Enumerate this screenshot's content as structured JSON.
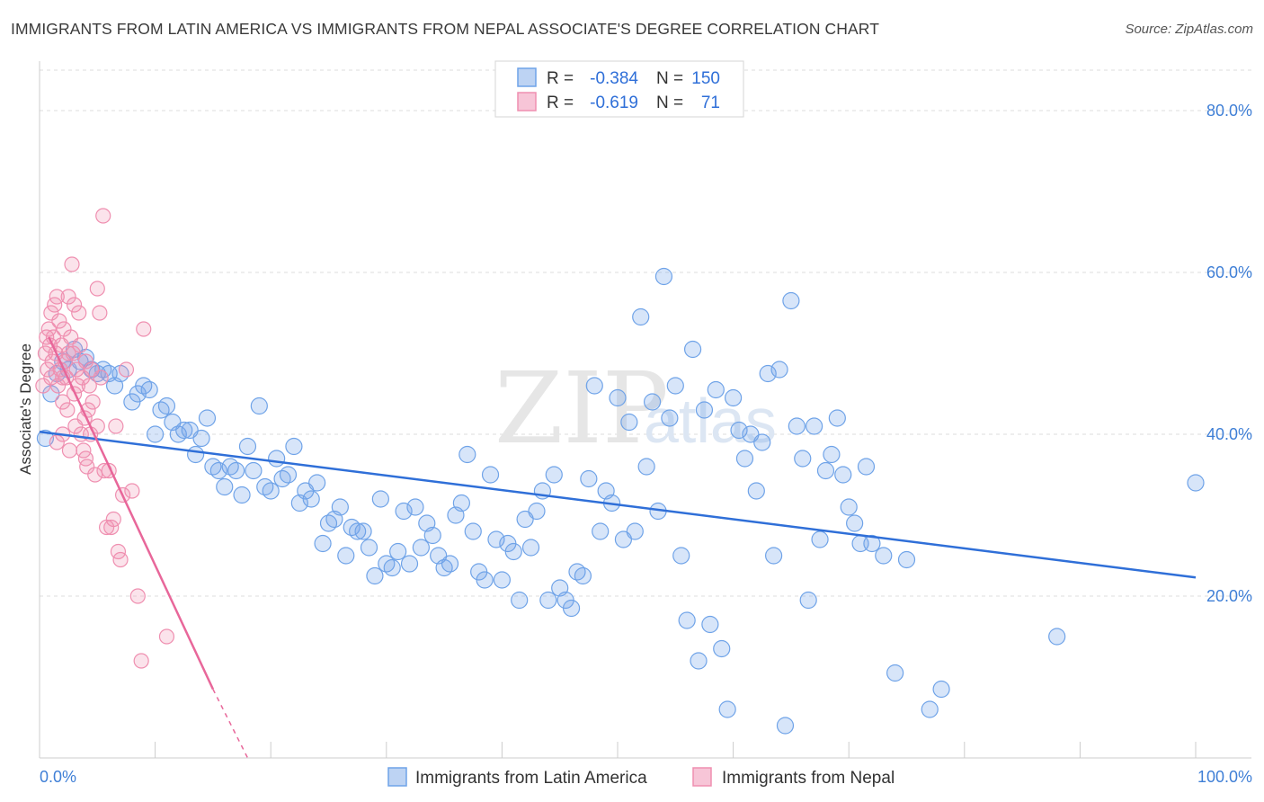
{
  "title": "IMMIGRANTS FROM LATIN AMERICA VS IMMIGRANTS FROM NEPAL ASSOCIATE'S DEGREE CORRELATION CHART",
  "source": "Source: ZipAtlas.com",
  "watermark": {
    "zip": "ZIP",
    "atlas": "atlas"
  },
  "colors": {
    "blue": "#6fa3e8",
    "blue_line": "#2f6fd8",
    "pink": "#ef8fb0",
    "pink_line": "#e8679a",
    "tick_text": "#3f7fd6",
    "grid": "#dddddd"
  },
  "legend_top": {
    "r_label": "R =",
    "n_label": "N =",
    "rows": [
      {
        "r": "-0.384",
        "n": "150",
        "color": "blue"
      },
      {
        "r": "-0.619",
        "n": "71",
        "color": "pink"
      }
    ]
  },
  "chart_data": {
    "type": "scatter",
    "xlabel": "",
    "ylabel": "Associate's Degree",
    "xlim": [
      0,
      100
    ],
    "ylim": [
      0,
      85
    ],
    "x_ticks": [
      {
        "value": 0,
        "label": "0.0%"
      },
      {
        "value": 100,
        "label": "100.0%"
      }
    ],
    "y_ticks": [
      {
        "value": 20,
        "label": "20.0%"
      },
      {
        "value": 40,
        "label": "40.0%"
      },
      {
        "value": 60,
        "label": "60.0%"
      },
      {
        "value": 80,
        "label": "80.0%"
      }
    ],
    "grid": true,
    "legend_position": "bottom",
    "series": [
      {
        "name": "Immigrants from Latin America",
        "color": "blue",
        "trend": {
          "x0": 0,
          "y0": 40.3,
          "x1": 100,
          "y1": 22.3
        },
        "points": [
          [
            0.5,
            39.5
          ],
          [
            1,
            45
          ],
          [
            1.5,
            47.5
          ],
          [
            2,
            49
          ],
          [
            2.5,
            48
          ],
          [
            3,
            50.5
          ],
          [
            3.5,
            49
          ],
          [
            4,
            49.5
          ],
          [
            4.5,
            48
          ],
          [
            5,
            47.5
          ],
          [
            5.5,
            48
          ],
          [
            6,
            47.5
          ],
          [
            6.5,
            46
          ],
          [
            7,
            47.5
          ],
          [
            8,
            44
          ],
          [
            8.5,
            45
          ],
          [
            9,
            46
          ],
          [
            9.5,
            45.5
          ],
          [
            10,
            40
          ],
          [
            10.5,
            43
          ],
          [
            11,
            43.5
          ],
          [
            11.5,
            41.5
          ],
          [
            12,
            40
          ],
          [
            12.5,
            40.5
          ],
          [
            13,
            40.5
          ],
          [
            13.5,
            37.5
          ],
          [
            14,
            39.5
          ],
          [
            14.5,
            42
          ],
          [
            15,
            36
          ],
          [
            15.5,
            35.5
          ],
          [
            16,
            33.5
          ],
          [
            16.5,
            36
          ],
          [
            17,
            35.5
          ],
          [
            17.5,
            32.5
          ],
          [
            18,
            38.5
          ],
          [
            18.5,
            35.5
          ],
          [
            19,
            43.5
          ],
          [
            19.5,
            33.5
          ],
          [
            20,
            33
          ],
          [
            20.5,
            37
          ],
          [
            21,
            34.5
          ],
          [
            21.5,
            35
          ],
          [
            22,
            38.5
          ],
          [
            22.5,
            31.5
          ],
          [
            23,
            33
          ],
          [
            23.5,
            32
          ],
          [
            24,
            34
          ],
          [
            24.5,
            26.5
          ],
          [
            25,
            29
          ],
          [
            25.5,
            29.5
          ],
          [
            26,
            31
          ],
          [
            26.5,
            25
          ],
          [
            27,
            28.5
          ],
          [
            27.5,
            28
          ],
          [
            28,
            28
          ],
          [
            28.5,
            26
          ],
          [
            29,
            22.5
          ],
          [
            29.5,
            32
          ],
          [
            30,
            24
          ],
          [
            30.5,
            23.5
          ],
          [
            31,
            25.5
          ],
          [
            31.5,
            30.5
          ],
          [
            32,
            24
          ],
          [
            32.5,
            31
          ],
          [
            33,
            26
          ],
          [
            33.5,
            29
          ],
          [
            34,
            27.5
          ],
          [
            34.5,
            25
          ],
          [
            35,
            23.5
          ],
          [
            35.5,
            24
          ],
          [
            36,
            30
          ],
          [
            36.5,
            31.5
          ],
          [
            37,
            37.5
          ],
          [
            37.5,
            28
          ],
          [
            38,
            23
          ],
          [
            38.5,
            22
          ],
          [
            39,
            35
          ],
          [
            39.5,
            27
          ],
          [
            40,
            22
          ],
          [
            40.5,
            26.5
          ],
          [
            41,
            25.5
          ],
          [
            41.5,
            19.5
          ],
          [
            42,
            29.5
          ],
          [
            42.5,
            26
          ],
          [
            43,
            30.5
          ],
          [
            43.5,
            33
          ],
          [
            44,
            19.5
          ],
          [
            44.5,
            35
          ],
          [
            45,
            21
          ],
          [
            45.5,
            19.5
          ],
          [
            46,
            18.5
          ],
          [
            46.5,
            23
          ],
          [
            47,
            22.5
          ],
          [
            47.5,
            34.5
          ],
          [
            48,
            46
          ],
          [
            48.5,
            28
          ],
          [
            49,
            33
          ],
          [
            49.5,
            31.5
          ],
          [
            50,
            44.5
          ],
          [
            50.5,
            27
          ],
          [
            51,
            41.5
          ],
          [
            51.5,
            28
          ],
          [
            52,
            54.5
          ],
          [
            52.5,
            36
          ],
          [
            53,
            44
          ],
          [
            53.5,
            30.5
          ],
          [
            54,
            59.5
          ],
          [
            54.5,
            42
          ],
          [
            55,
            46
          ],
          [
            55.5,
            25
          ],
          [
            56,
            17
          ],
          [
            56.5,
            50.5
          ],
          [
            57,
            12
          ],
          [
            57.5,
            43
          ],
          [
            58,
            16.5
          ],
          [
            58.5,
            45.5
          ],
          [
            59,
            13.5
          ],
          [
            59.5,
            6
          ],
          [
            60,
            44.5
          ],
          [
            60.5,
            40.5
          ],
          [
            61,
            37
          ],
          [
            61.5,
            40
          ],
          [
            62,
            33
          ],
          [
            62.5,
            39
          ],
          [
            63,
            47.5
          ],
          [
            63.5,
            25
          ],
          [
            64,
            48
          ],
          [
            64.5,
            4
          ],
          [
            65,
            56.5
          ],
          [
            65.5,
            41
          ],
          [
            66,
            37
          ],
          [
            66.5,
            19.5
          ],
          [
            67,
            41
          ],
          [
            67.5,
            27
          ],
          [
            68,
            35.5
          ],
          [
            68.5,
            37.5
          ],
          [
            69,
            42
          ],
          [
            69.5,
            35
          ],
          [
            70,
            31
          ],
          [
            70.5,
            29
          ],
          [
            71,
            26.5
          ],
          [
            71.5,
            36
          ],
          [
            72,
            26.5
          ],
          [
            73,
            25
          ],
          [
            74,
            10.5
          ],
          [
            75,
            24.5
          ],
          [
            77,
            6
          ],
          [
            78,
            8.5
          ],
          [
            88,
            15
          ],
          [
            100,
            34
          ]
        ]
      },
      {
        "name": "Immigrants from Nepal",
        "color": "pink",
        "trend": {
          "x0": 0.8,
          "y0": 52,
          "x1": 15,
          "y1": 8.5,
          "dash_to_x": 18,
          "dash_to_y": 0
        },
        "points": [
          [
            0.3,
            46
          ],
          [
            0.5,
            50
          ],
          [
            0.6,
            52
          ],
          [
            0.7,
            48
          ],
          [
            0.8,
            53
          ],
          [
            0.9,
            51
          ],
          [
            1,
            55
          ],
          [
            1,
            47
          ],
          [
            1.1,
            49
          ],
          [
            1.2,
            52
          ],
          [
            1.3,
            56
          ],
          [
            1.4,
            50
          ],
          [
            1.5,
            57
          ],
          [
            1.6,
            46
          ],
          [
            1.7,
            54
          ],
          [
            1.8,
            48
          ],
          [
            1.9,
            51
          ],
          [
            2,
            44
          ],
          [
            2,
            40
          ],
          [
            2.1,
            53
          ],
          [
            2.2,
            49
          ],
          [
            2.3,
            47
          ],
          [
            2.4,
            43
          ],
          [
            2.5,
            57
          ],
          [
            2.6,
            38
          ],
          [
            2.7,
            52
          ],
          [
            2.8,
            61
          ],
          [
            2.9,
            50
          ],
          [
            3,
            56
          ],
          [
            3.1,
            41
          ],
          [
            3.2,
            48
          ],
          [
            3.3,
            46
          ],
          [
            3.4,
            55
          ],
          [
            3.5,
            51
          ],
          [
            3.6,
            40
          ],
          [
            3.7,
            47
          ],
          [
            3.8,
            38
          ],
          [
            3.9,
            42
          ],
          [
            4,
            49
          ],
          [
            4.1,
            36
          ],
          [
            4.2,
            43
          ],
          [
            4.3,
            46
          ],
          [
            4.4,
            40
          ],
          [
            4.5,
            48
          ],
          [
            4.6,
            44
          ],
          [
            4.8,
            35
          ],
          [
            5,
            41
          ],
          [
            5,
            58
          ],
          [
            5.2,
            55
          ],
          [
            5.3,
            47
          ],
          [
            5.5,
            67
          ],
          [
            5.6,
            35.5
          ],
          [
            5.8,
            28.5
          ],
          [
            6,
            35.5
          ],
          [
            6.2,
            28.5
          ],
          [
            6.4,
            29.5
          ],
          [
            6.6,
            41
          ],
          [
            6.8,
            25.5
          ],
          [
            7,
            24.5
          ],
          [
            7.2,
            32.5
          ],
          [
            7.5,
            48
          ],
          [
            8,
            33
          ],
          [
            8.5,
            20
          ],
          [
            8.8,
            12
          ],
          [
            9,
            53
          ],
          [
            11,
            15
          ],
          [
            1.5,
            39
          ],
          [
            2,
            47
          ],
          [
            3,
            45
          ],
          [
            4,
            37
          ],
          [
            2.5,
            50
          ]
        ]
      }
    ]
  }
}
